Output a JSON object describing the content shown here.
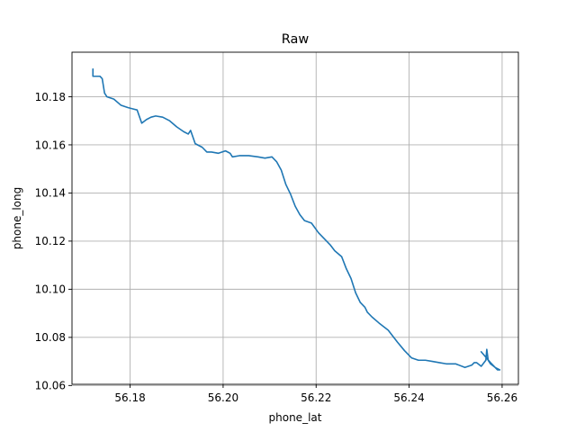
{
  "chart_data": {
    "type": "line",
    "title": "Raw",
    "xlabel": "phone_lat",
    "ylabel": "phone_long",
    "xlim": [
      56.1675,
      56.2635
    ],
    "ylim": [
      10.0605,
      10.1985
    ],
    "xticks": [
      56.18,
      56.2,
      56.22,
      56.24,
      56.26
    ],
    "yticks": [
      10.06,
      10.08,
      10.1,
      10.12,
      10.14,
      10.16,
      10.18
    ],
    "xtick_labels": [
      "56.18",
      "56.20",
      "56.22",
      "56.24",
      "56.26"
    ],
    "ytick_labels": [
      "10.06",
      "10.08",
      "10.10",
      "10.12",
      "10.14",
      "10.16",
      "10.18"
    ],
    "grid": true,
    "legend": "none",
    "series": [
      {
        "color": "#1f77b4",
        "x": [
          56.172,
          56.172,
          56.1735,
          56.174,
          56.1745,
          56.175,
          56.1765,
          56.178,
          56.1795,
          56.1805,
          56.1815,
          56.1825,
          56.1835,
          56.1845,
          56.1855,
          56.187,
          56.1885,
          56.19,
          56.1915,
          56.1925,
          56.193,
          56.194,
          56.1955,
          56.1965,
          56.1975,
          56.199,
          56.2005,
          56.2015,
          56.202,
          56.2035,
          56.2055,
          56.2075,
          56.209,
          56.2105,
          56.2115,
          56.2125,
          56.2135,
          56.2145,
          56.2155,
          56.2165,
          56.2175,
          56.219,
          56.2205,
          56.222,
          56.223,
          56.224,
          56.2255,
          56.2265,
          56.2275,
          56.2285,
          56.2295,
          56.2305,
          56.231,
          56.232,
          56.2335,
          56.2355,
          56.2375,
          56.239,
          56.2405,
          56.242,
          56.2435,
          56.245,
          56.2465,
          56.248,
          56.25,
          56.252,
          56.2535,
          56.254,
          56.2545,
          56.2555,
          56.2565,
          56.2567,
          56.257,
          56.2575,
          56.2585,
          56.2595,
          56.259,
          56.2575,
          56.2555
        ],
        "y": [
          10.1915,
          10.1885,
          10.1885,
          10.1875,
          10.1815,
          10.18,
          10.179,
          10.1765,
          10.1755,
          10.175,
          10.1745,
          10.169,
          10.1705,
          10.1715,
          10.172,
          10.1715,
          10.17,
          10.1675,
          10.1655,
          10.1645,
          10.166,
          10.1605,
          10.159,
          10.157,
          10.157,
          10.1565,
          10.1575,
          10.1565,
          10.155,
          10.1555,
          10.1555,
          10.155,
          10.1545,
          10.155,
          10.153,
          10.1495,
          10.1435,
          10.1395,
          10.1345,
          10.131,
          10.1285,
          10.1275,
          10.1235,
          10.1205,
          10.1185,
          10.116,
          10.1135,
          10.1085,
          10.1045,
          10.0985,
          10.0945,
          10.0925,
          10.0905,
          10.0885,
          10.086,
          10.083,
          10.078,
          10.0745,
          10.0715,
          10.0705,
          10.0705,
          10.07,
          10.0695,
          10.069,
          10.069,
          10.0675,
          10.0685,
          10.0695,
          10.0695,
          10.068,
          10.0705,
          10.075,
          10.0705,
          10.069,
          10.0675,
          10.0665,
          10.0665,
          10.0695,
          10.074
        ]
      }
    ]
  }
}
